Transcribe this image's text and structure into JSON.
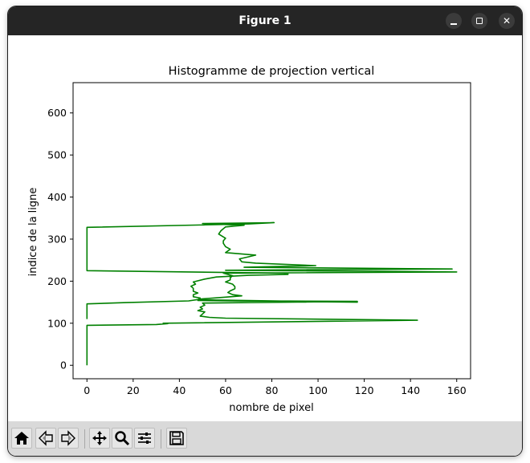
{
  "window": {
    "title": "Figure 1",
    "controls": {
      "minimize_glyph": "–",
      "maximize_glyph": "□",
      "close_glyph": "✕"
    }
  },
  "toolbar": {
    "tools": [
      {
        "id": "home",
        "icon": "home-icon"
      },
      {
        "id": "back",
        "icon": "arrow-left-icon"
      },
      {
        "id": "forward",
        "icon": "arrow-right-icon"
      },
      {
        "id": "pan",
        "icon": "move-icon"
      },
      {
        "id": "zoom",
        "icon": "magnifier-icon"
      },
      {
        "id": "configure",
        "icon": "sliders-icon"
      },
      {
        "id": "save",
        "icon": "floppy-disk-icon"
      }
    ]
  },
  "colors": {
    "series": "#008000",
    "titlebar": "#252525",
    "toolbar": "#d9d9d9"
  },
  "chart_data": {
    "type": "line",
    "title": "Histogramme de projection vertical",
    "xlabel": "nombre de pixel",
    "ylabel": "indice de la ligne",
    "xlim": [
      -6,
      166
    ],
    "ylim": [
      -32,
      672
    ],
    "xticks": [
      0,
      20,
      40,
      60,
      80,
      100,
      120,
      140,
      160
    ],
    "yticks": [
      0,
      100,
      200,
      300,
      400,
      500,
      600
    ],
    "grid": false,
    "legend": "none",
    "series": [
      {
        "color": "#008000",
        "points": [
          [
            0,
            0
          ],
          [
            0,
            95
          ],
          [
            30,
            97
          ],
          [
            35,
            99
          ],
          [
            33,
            100
          ],
          [
            143,
            107
          ],
          [
            60,
            112
          ],
          [
            53,
            114
          ],
          [
            49,
            117
          ],
          [
            50,
            122
          ],
          [
            51,
            127
          ],
          [
            48,
            130
          ],
          [
            50,
            134
          ],
          [
            49,
            138
          ],
          [
            51,
            143
          ],
          [
            50,
            148
          ],
          [
            117,
            152
          ],
          [
            48,
            154
          ],
          [
            117,
            150
          ],
          [
            48,
            156
          ],
          [
            49,
            160
          ],
          [
            46,
            163
          ],
          [
            46,
            168
          ],
          [
            48,
            172
          ],
          [
            46,
            176
          ],
          [
            46,
            183
          ],
          [
            45,
            188
          ],
          [
            47,
            193
          ],
          [
            46,
            198
          ],
          [
            51,
            205
          ],
          [
            56,
            210
          ],
          [
            70,
            214
          ],
          [
            87,
            216
          ],
          [
            87,
            218
          ],
          [
            85,
            219
          ],
          [
            0,
            225
          ],
          [
            0,
            328
          ],
          [
            70,
            336
          ],
          [
            81,
            339
          ],
          [
            50,
            337
          ],
          [
            68,
            333
          ],
          [
            60,
            329
          ],
          [
            58,
            320
          ],
          [
            57,
            312
          ],
          [
            60,
            302
          ],
          [
            59,
            296
          ],
          [
            59,
            290
          ],
          [
            60,
            282
          ],
          [
            62,
            276
          ],
          [
            60,
            268
          ],
          [
            73,
            262
          ],
          [
            70,
            258
          ],
          [
            66,
            253
          ],
          [
            67,
            246
          ],
          [
            73,
            243
          ],
          [
            99,
            237
          ],
          [
            68,
            233
          ],
          [
            158,
            229
          ],
          [
            60,
            226
          ],
          [
            160,
            222
          ],
          [
            59,
            219
          ],
          [
            63,
            213
          ],
          [
            62,
            208
          ],
          [
            62,
            203
          ],
          [
            60,
            198
          ],
          [
            63,
            193
          ],
          [
            64,
            187
          ],
          [
            64,
            182
          ],
          [
            62,
            177
          ],
          [
            61,
            173
          ],
          [
            63,
            168
          ],
          [
            67,
            165
          ],
          [
            60,
            162
          ],
          [
            50,
            158
          ],
          [
            44,
            153
          ],
          [
            17,
            149
          ],
          [
            0,
            146
          ],
          [
            0,
            133
          ],
          [
            0,
            110
          ]
        ]
      }
    ]
  }
}
